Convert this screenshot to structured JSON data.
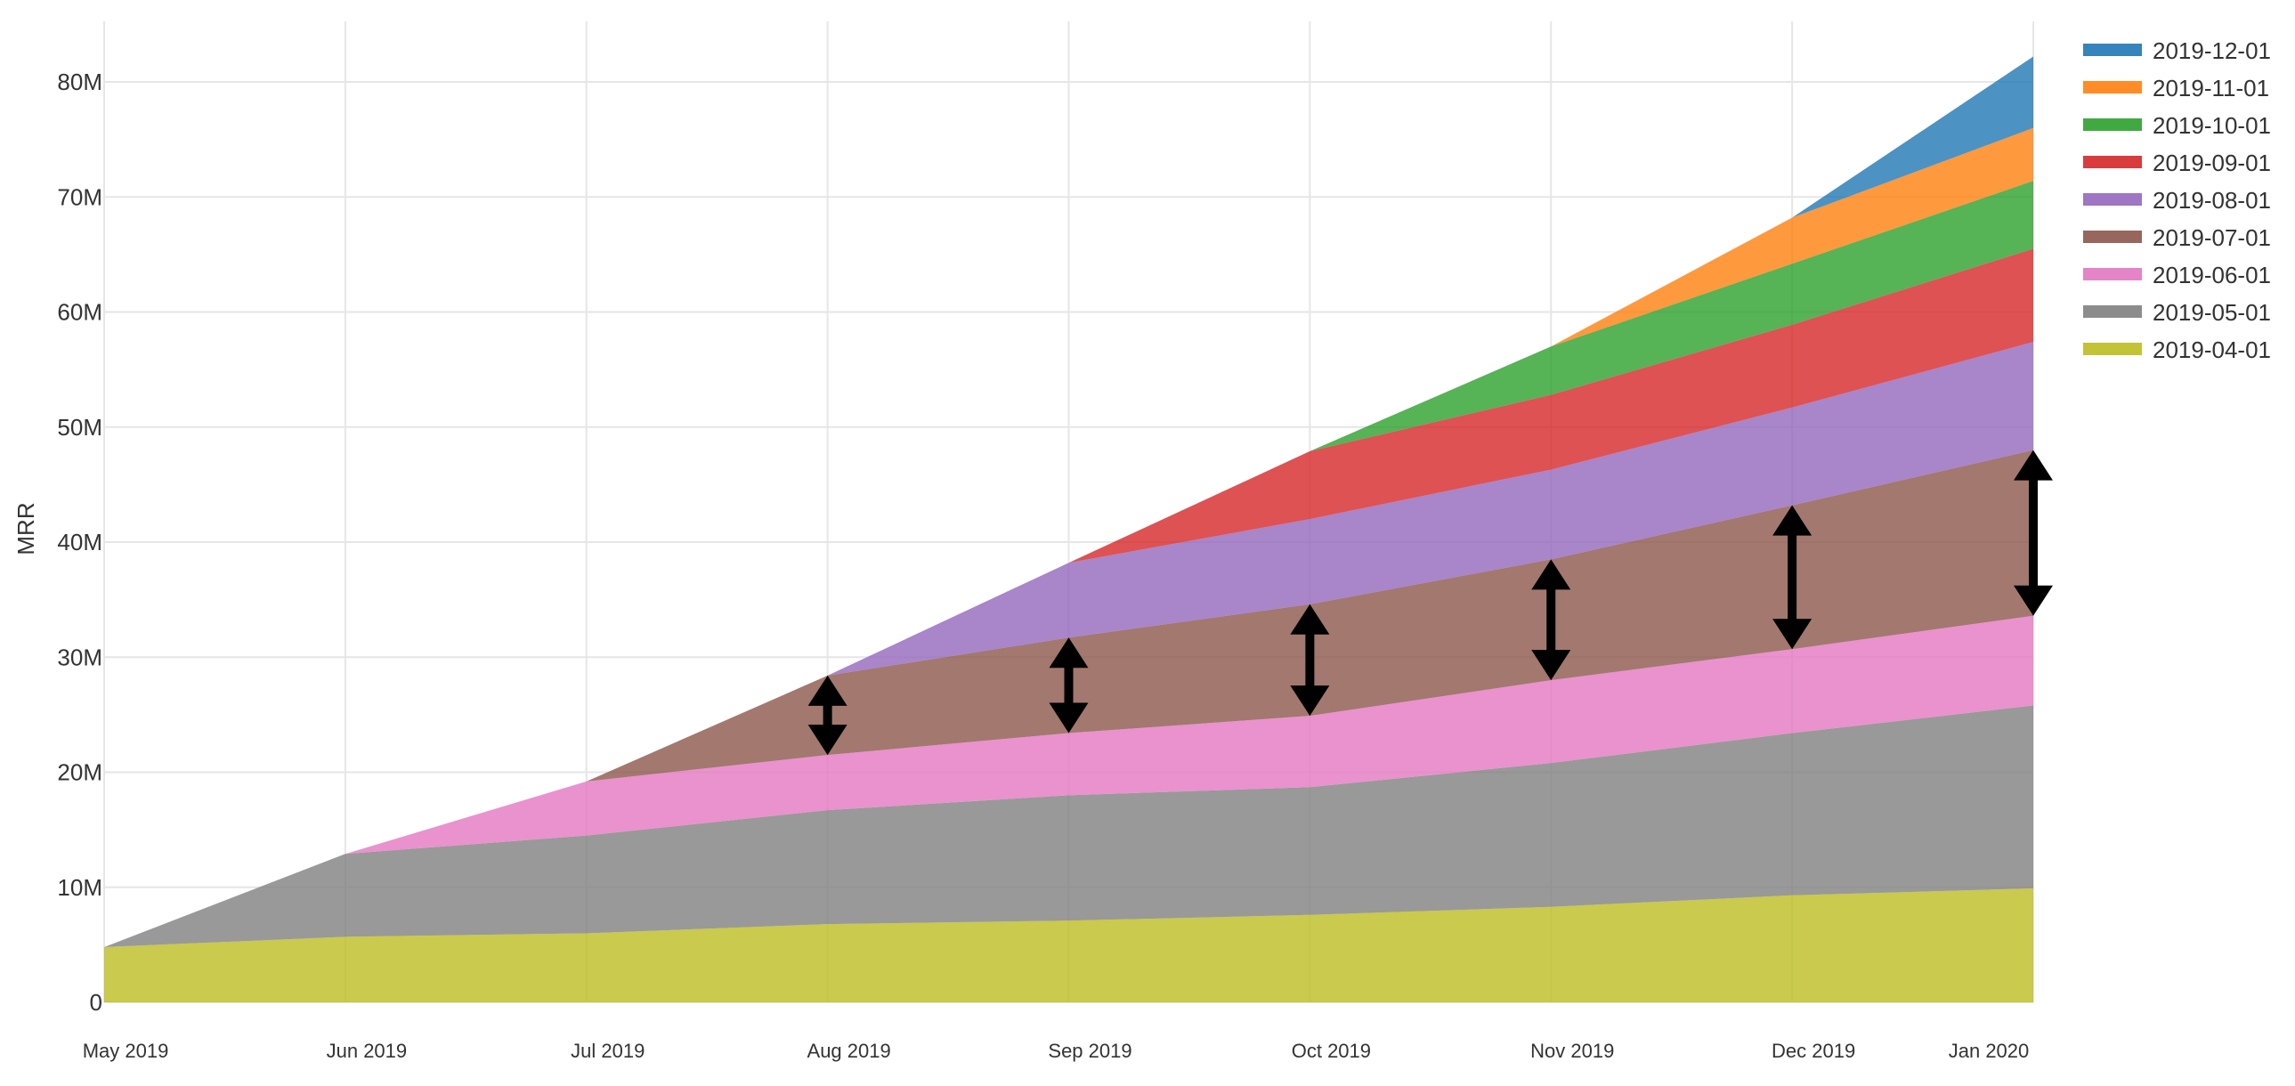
{
  "chart_data": {
    "type": "area",
    "stacked": true,
    "ylabel": "MRR",
    "xlabel": "",
    "ylim": [
      0,
      85000000
    ],
    "yticks": [
      0,
      10000000,
      20000000,
      30000000,
      40000000,
      50000000,
      60000000,
      70000000,
      80000000
    ],
    "ytick_labels": [
      "0",
      "10M",
      "20M",
      "30M",
      "40M",
      "50M",
      "60M",
      "70M",
      "80M"
    ],
    "x": [
      "2019-04-30",
      "2019-05-31",
      "2019-06-30",
      "2019-07-31",
      "2019-08-31",
      "2019-09-30",
      "2019-10-31",
      "2019-11-30",
      "2019-12-31"
    ],
    "xtick_labels": [
      "May 2019",
      "Jun 2019",
      "Jul 2019",
      "Aug 2019",
      "Sep 2019",
      "Oct 2019",
      "Nov 2019",
      "Dec 2019",
      "Jan 2020"
    ],
    "grid": true,
    "legend_position": "top-right",
    "series": [
      {
        "name": "2019-04-01",
        "color": "#bcbd22",
        "values": [
          4.8,
          5.7,
          6.0,
          6.8,
          7.1,
          7.6,
          8.3,
          9.3,
          9.9
        ]
      },
      {
        "name": "2019-05-01",
        "color": "#7f7f7f",
        "values": [
          0,
          7.2,
          8.5,
          9.9,
          10.9,
          11.1,
          12.5,
          14.1,
          15.9
        ]
      },
      {
        "name": "2019-06-01",
        "color": "#e377c2",
        "values": [
          0,
          0,
          4.7,
          4.8,
          5.4,
          6.2,
          7.2,
          7.3,
          7.8
        ]
      },
      {
        "name": "2019-07-01",
        "color": "#8c564b",
        "values": [
          0,
          0,
          0,
          6.9,
          8.3,
          9.7,
          10.5,
          12.5,
          14.4
        ]
      },
      {
        "name": "2019-08-01",
        "color": "#9467bd",
        "values": [
          0,
          0,
          0,
          0,
          6.5,
          7.4,
          7.8,
          8.5,
          9.4
        ]
      },
      {
        "name": "2019-09-01",
        "color": "#d62728",
        "values": [
          0,
          0,
          0,
          0,
          0,
          5.9,
          6.5,
          7.2,
          8.1
        ]
      },
      {
        "name": "2019-10-01",
        "color": "#2ca02c",
        "values": [
          0,
          0,
          0,
          0,
          0,
          0,
          4.2,
          5.3,
          5.9
        ]
      },
      {
        "name": "2019-11-01",
        "color": "#ff7f0e",
        "values": [
          0,
          0,
          0,
          0,
          0,
          0,
          0,
          4.0,
          4.6
        ]
      },
      {
        "name": "2019-12-01",
        "color": "#1f77b4",
        "values": [
          0,
          0,
          0,
          0,
          0,
          0,
          0,
          0,
          6.2
        ]
      }
    ],
    "value_unit_multiplier": 1000000,
    "legend_order": [
      "2019-12-01",
      "2019-11-01",
      "2019-10-01",
      "2019-09-01",
      "2019-08-01",
      "2019-07-01",
      "2019-06-01",
      "2019-05-01",
      "2019-04-01"
    ],
    "annotations": {
      "type": "double-arrow",
      "color": "#000000",
      "target_series": "2019-07-01",
      "x_indices": [
        3,
        4,
        5,
        6,
        7,
        8
      ]
    }
  }
}
